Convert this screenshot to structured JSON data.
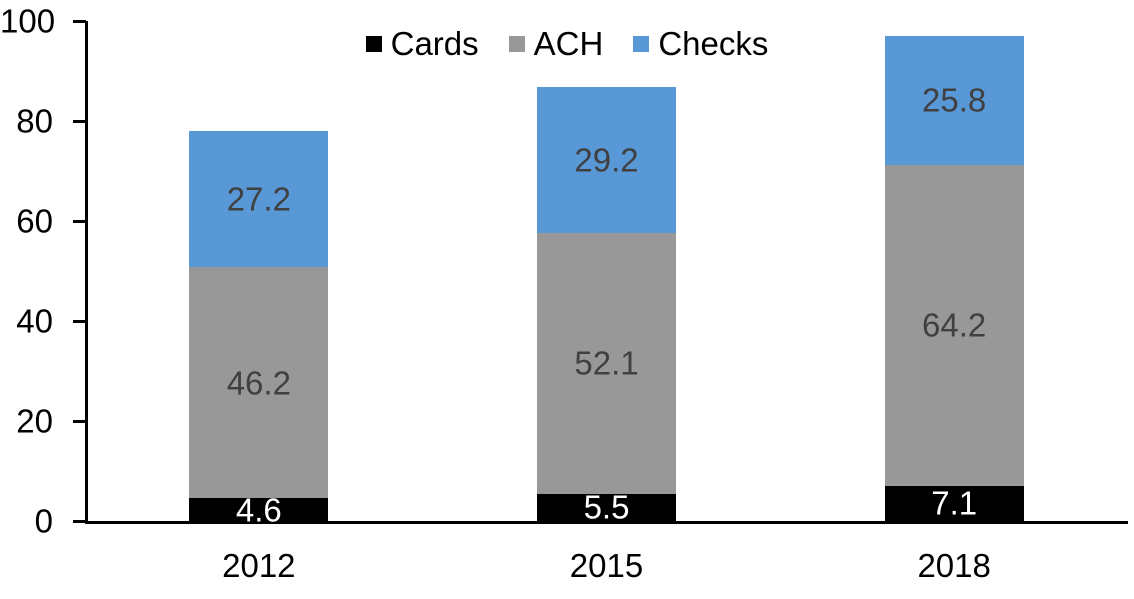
{
  "chart_data": {
    "type": "bar",
    "stacked": true,
    "title": "",
    "xlabel": "",
    "ylabel": "",
    "categories": [
      "2012",
      "2015",
      "2018"
    ],
    "series": [
      {
        "name": "Cards",
        "color": "#000000",
        "label_color": "#ffffff",
        "values": [
          4.6,
          5.5,
          7.1
        ]
      },
      {
        "name": "ACH",
        "color": "#989898",
        "label_color": "#404040",
        "values": [
          46.2,
          52.1,
          64.2
        ]
      },
      {
        "name": "Checks",
        "color": "#5898D6",
        "label_color": "#404040",
        "values": [
          27.2,
          29.2,
          25.8
        ]
      }
    ],
    "totals": [
      78.0,
      86.8,
      97.1
    ],
    "ylim": [
      0,
      100
    ],
    "yticks": [
      0,
      20,
      40,
      60,
      80,
      100
    ],
    "grid": false,
    "legend_position": "top-center",
    "axis_color": "#000000",
    "background_color": "#ffffff"
  }
}
